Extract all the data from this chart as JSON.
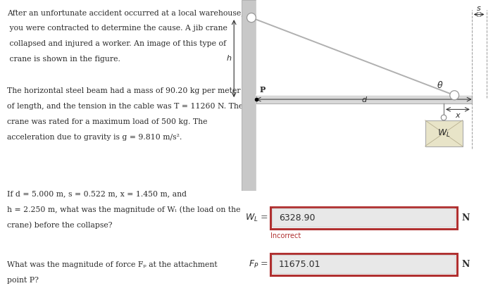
{
  "bg_color": "#ffffff",
  "text_color": "#2c2c2c",
  "paragraph1": "After an unfortunate accident occurred at a local warehouse,",
  "paragraph2": " you were contracted to determine the cause. A jib crane",
  "paragraph3": " collapsed and injured a worker. An image of this type of",
  "paragraph4": " crane is shown in the figure.",
  "paragraph5": "The horizontal steel beam had a mass of 90.20 kg per meter",
  "paragraph6": "of length, and the tension in the cable was T = 11260 N. The",
  "paragraph7": "crane was rated for a maximum load of 500 kg. The",
  "paragraph8": "acceleration due to gravity is g = 9.810 m/s².",
  "q1_line1": "If d = 5.000 m, s = 0.522 m, x = 1.450 m, and",
  "q1_line2": "h = 2.250 m, what was the magnitude of Wₗ (the load on the",
  "q1_line3": "crane) before the collapse?",
  "q2_line1": "What was the magnitude of force Fₚ at the attachment",
  "q2_line2": "point P?",
  "answer1": "6328.90",
  "answer2": "11675.01",
  "incorrect_label": "Incorrect",
  "unit": "N",
  "wall_color": "#c8c8c8",
  "wall_edge": "#aaaaaa",
  "beam_color": "#d8d8d8",
  "beam_edge": "#aaaaaa",
  "cable_color": "#b0b0b0",
  "circle_color": "#ffffff",
  "circle_edge": "#999999",
  "box_fill": "#e8e4c8",
  "box_edge": "#aaaaaa",
  "dim_color": "#555555",
  "input_bg": "#e8e8e8",
  "input_border_red": "#b03030",
  "inner_border": "#cccccc",
  "diag_bg": "#f5f5f5"
}
